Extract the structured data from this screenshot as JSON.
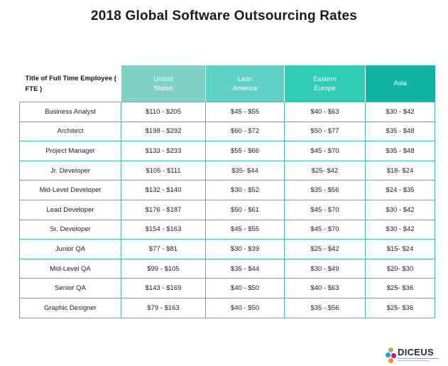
{
  "chart_data": {
    "type": "table",
    "title": "2018 Global Software Outsourcing Rates",
    "corner_header": "Title of Full Time Employee ( FTE )",
    "columns": [
      {
        "name": "United States",
        "color": "#7fd2c4"
      },
      {
        "name": "Latin America",
        "color": "#5fd2c3"
      },
      {
        "name": "Eastern Europe",
        "color": "#2ecdb4"
      },
      {
        "name": "Asia",
        "color": "#11b3a2"
      }
    ],
    "rows": [
      {
        "role": "Business Analyst",
        "values": [
          "$110 - $205",
          "$45 - $55",
          "$40 - $63",
          "$30 - $42"
        ]
      },
      {
        "role": "Architect",
        "values": [
          "$198 - $292",
          "$60 - $72",
          "$50 - $77",
          "$35 - $48"
        ]
      },
      {
        "role": "Project Manager",
        "values": [
          "$133 - $233",
          "$55 - $66",
          "$45 - $70",
          "$35 - $48"
        ]
      },
      {
        "role": "Jr. Developer",
        "values": [
          "$105 - $111",
          "$35- $44",
          "$25- $42",
          "$18- $24"
        ]
      },
      {
        "role": "Mid-Level Developer",
        "values": [
          "$132 - $140",
          "$30 - $52",
          "$35 - $56",
          "$24 - $35"
        ]
      },
      {
        "role": "Lead Developer",
        "values": [
          "$176 - $187",
          "$50 - $61",
          "$45 - $70",
          "$30 - $42"
        ]
      },
      {
        "role": "Sr. Developer",
        "values": [
          "$154 - $163",
          "$45 - $55",
          "$45 - $70",
          "$30 - $42"
        ]
      },
      {
        "role": "Junior QA",
        "values": [
          "$77 - $81",
          "$30 - $39",
          "$25 - $42",
          "$15- $24"
        ]
      },
      {
        "role": "Mid-Level QA",
        "values": [
          "$99 - $105",
          "$35 - $44",
          "$30 - $49",
          "$20- $30"
        ]
      },
      {
        "role": "Senior QA",
        "values": [
          "$143 - $169",
          "$40 - $50",
          "$40 - $63",
          "$25- $36"
        ]
      },
      {
        "role": "Graphic Designer",
        "values": [
          "$79 - $163",
          "$40 - $50",
          "$35 - $56",
          "$25- $36"
        ]
      }
    ]
  },
  "logo": {
    "text": "DICEUS",
    "colors": [
      "#8dc63f",
      "#00aeef",
      "#ec008c",
      "#f7941d"
    ]
  }
}
